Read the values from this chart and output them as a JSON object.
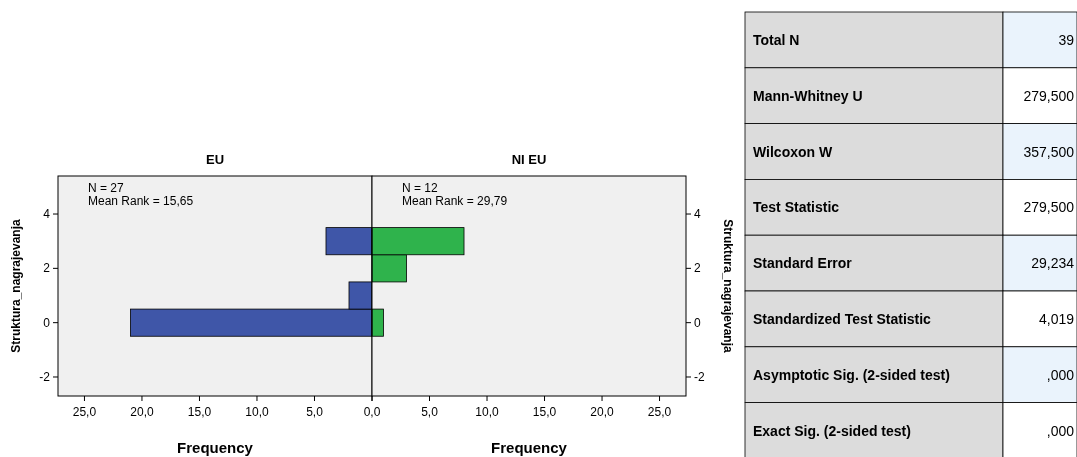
{
  "chart_data": [
    {
      "type": "bar",
      "orientation": "horizontal",
      "title": "EU",
      "xlabel": "Frequency",
      "ylabel": "Struktura_nagrajevanja",
      "x": [
        0,
        1,
        2,
        3
      ],
      "xlim": [
        27.3,
        0
      ],
      "xticks": [
        {
          "value": 25,
          "label": "25,0"
        },
        {
          "value": 20,
          "label": "20,0"
        },
        {
          "value": 15,
          "label": "15,0"
        },
        {
          "value": 10,
          "label": "10,0"
        },
        {
          "value": 5,
          "label": "5,0"
        },
        {
          "value": 0,
          "label": "0,0"
        }
      ],
      "ylim": [
        -2.7,
        5.4
      ],
      "yticks": [
        -2,
        0,
        2,
        4
      ],
      "series": [
        {
          "color": "#3f56a8",
          "values": [
            21,
            2,
            null,
            4
          ]
        }
      ],
      "annotations": [
        "N = 27",
        "Mean Rank = 15,65"
      ]
    },
    {
      "type": "bar",
      "orientation": "horizontal",
      "title": "NI EU",
      "xlabel": "Frequency",
      "ylabel": "Struktura_nagrajevanja",
      "x": [
        0,
        1,
        2,
        3
      ],
      "xlim": [
        0,
        27.3
      ],
      "xticks": [
        {
          "value": 0,
          "label": null
        },
        {
          "value": 5,
          "label": "5,0"
        },
        {
          "value": 10,
          "label": "10,0"
        },
        {
          "value": 15,
          "label": "15,0"
        },
        {
          "value": 20,
          "label": "20,0"
        },
        {
          "value": 25,
          "label": "25,0"
        }
      ],
      "ylim": [
        -2.7,
        5.4
      ],
      "yticks": [
        -2,
        0,
        2,
        4
      ],
      "series": [
        {
          "color": "#2fb34c",
          "values": [
            1,
            null,
            3,
            8
          ]
        }
      ],
      "annotations": [
        "N = 12",
        "Mean Rank = 29,79"
      ]
    },
    {
      "type": "other",
      "categories": [
        "Total N",
        "Mann-Whitney U",
        "Wilcoxon W",
        "Test Statistic",
        "Standard Error",
        "Standardized Test Statistic",
        "Asymptotic Sig. (2-sided test)",
        "Exact Sig. (2-sided test)"
      ],
      "value_labels": [
        "39",
        "279,500",
        "357,500",
        "279,500",
        "29,234",
        "4,019",
        ",000",
        ",000"
      ]
    }
  ]
}
